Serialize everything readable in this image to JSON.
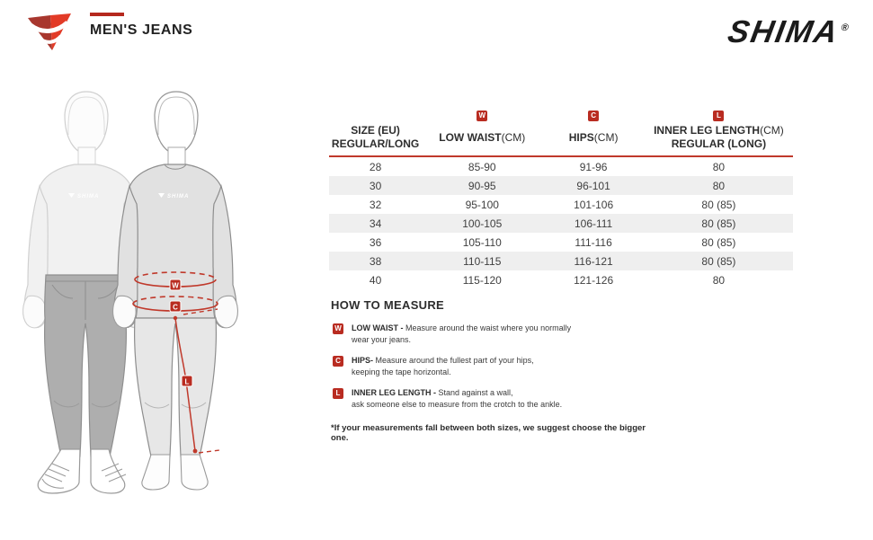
{
  "header": {
    "page_title": "MEN'S JEANS",
    "brand": "SHIMA",
    "brand_reg": "®"
  },
  "accent_color": "#b92c21",
  "table": {
    "columns": [
      {
        "badge": "",
        "title": "SIZE (EU)",
        "unit": "",
        "subtitle": "REGULAR/LONG"
      },
      {
        "badge": "W",
        "title": "LOW WAIST",
        "unit": "(CM)",
        "subtitle": ""
      },
      {
        "badge": "C",
        "title": "HIPS",
        "unit": "(CM)",
        "subtitle": ""
      },
      {
        "badge": "L",
        "title": "INNER LEG LENGTH",
        "unit": "(CM)",
        "subtitle": "REGULAR (LONG)"
      }
    ],
    "rows": [
      [
        "28",
        "85-90",
        "91-96",
        "80"
      ],
      [
        "30",
        "90-95",
        "96-101",
        "80"
      ],
      [
        "32",
        "95-100",
        "101-106",
        "80 (85)"
      ],
      [
        "34",
        "100-105",
        "106-111",
        "80 (85)"
      ],
      [
        "36",
        "105-110",
        "111-116",
        "80 (85)"
      ],
      [
        "38",
        "110-115",
        "116-121",
        "80 (85)"
      ],
      [
        "40",
        "115-120",
        "121-126",
        "80"
      ]
    ]
  },
  "how_to_measure": {
    "heading": "HOW TO MEASURE",
    "items": [
      {
        "letter": "W",
        "label": "LOW WAIST - ",
        "text": "Measure around the waist where you normally\nwear your jeans."
      },
      {
        "letter": "C",
        "label": "HIPS- ",
        "text": "Measure around the fullest part of your hips,\nkeeping the tape horizontal."
      },
      {
        "letter": "L",
        "label": "INNER LEG LENGTH - ",
        "text": "Stand against a wall,\nask someone else to measure from the crotch to the ankle."
      }
    ],
    "footnote": "*If your measurements fall between both sizes, we suggest choose the bigger one."
  },
  "figure": {
    "labels": {
      "waist": "W",
      "hips": "C",
      "inner_leg": "L"
    },
    "chest_logo": "SHIMA"
  }
}
